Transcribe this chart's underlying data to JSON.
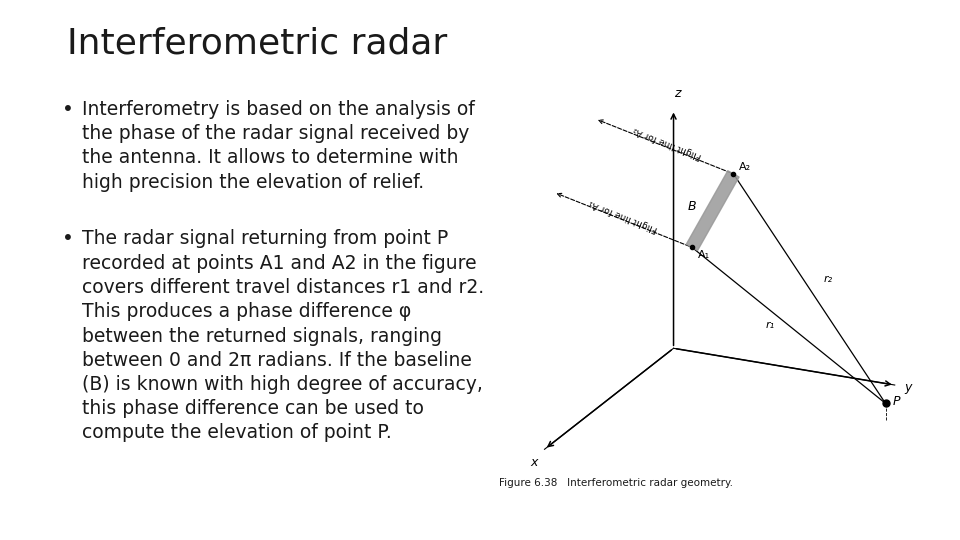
{
  "title": "Interferometric radar",
  "bullet1": "Interferometry is based on the analysis of\nthe phase of the radar signal received by\nthe antenna. It allows to determine with\nhigh precision the elevation of relief.",
  "bullet2": "The radar signal returning from point P\nrecorded at points A1 and A2 in the figure\ncovers different travel distances r1 and r2.\nThis produces a phase difference φ\nbetween the returned signals, ranging\nbetween 0 and 2π radians. If the baseline\n(B) is known with high degree of accuracy,\nthis phase difference can be used to\ncompute the elevation of point P.",
  "figure_caption": "Figure 6.38   Interferometric radar geometry.",
  "bg_color": "#ffffff",
  "text_color": "#1a1a1a",
  "title_fontsize": 26,
  "body_fontsize": 13.5,
  "caption_fontsize": 7.5,
  "diagram_bg": "#e8e8e8"
}
